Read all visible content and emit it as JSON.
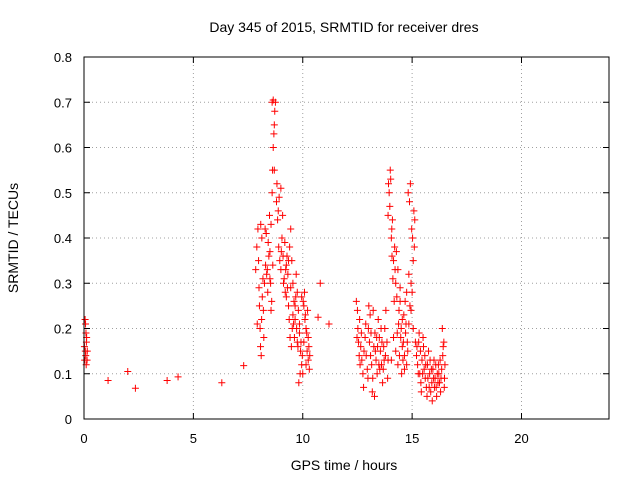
{
  "chart_data": {
    "type": "scatter",
    "title": "Day 345 of 2015, SRMTID for receiver dres",
    "xlabel": "GPS time / hours",
    "ylabel": "SRMTID / TECUs",
    "xlim": [
      0,
      24
    ],
    "ylim": [
      0,
      0.8
    ],
    "xticks": [
      0,
      5,
      10,
      15,
      20
    ],
    "xtick_labels": [
      "0",
      "5",
      "10",
      "15",
      "20"
    ],
    "yticks": [
      0,
      0.1,
      0.2,
      0.3,
      0.4,
      0.5,
      0.6,
      0.7,
      0.8
    ],
    "ytick_labels": [
      "0",
      "0.1",
      "0.2",
      "0.3",
      "0.4",
      "0.5",
      "0.6",
      "0.7",
      "0.8"
    ],
    "grid": true,
    "marker": "+",
    "color": "#ff0000",
    "series": [
      {
        "name": "SRMTID",
        "points": [
          [
            0.02,
            0.16
          ],
          [
            0.05,
            0.22
          ],
          [
            0.08,
            0.14
          ],
          [
            0.1,
            0.12
          ],
          [
            0.12,
            0.18
          ],
          [
            0.15,
            0.15
          ],
          [
            0.03,
            0.13
          ],
          [
            0.07,
            0.21
          ],
          [
            0.11,
            0.17
          ],
          [
            0.14,
            0.13
          ],
          [
            0.06,
            0.15
          ],
          [
            0.09,
            0.19
          ],
          [
            1.1,
            0.085
          ],
          [
            2.0,
            0.105
          ],
          [
            2.35,
            0.068
          ],
          [
            3.8,
            0.085
          ],
          [
            4.3,
            0.093
          ],
          [
            6.3,
            0.08
          ],
          [
            7.3,
            0.118
          ],
          [
            7.85,
            0.33
          ],
          [
            7.9,
            0.38
          ],
          [
            7.95,
            0.42
          ],
          [
            8.0,
            0.29
          ],
          [
            8.02,
            0.25
          ],
          [
            8.05,
            0.2
          ],
          [
            8.07,
            0.16
          ],
          [
            8.1,
            0.14
          ],
          [
            8.12,
            0.22
          ],
          [
            7.98,
            0.35
          ],
          [
            8.15,
            0.27
          ],
          [
            8.18,
            0.31
          ],
          [
            8.2,
            0.24
          ],
          [
            8.22,
            0.18
          ],
          [
            8.08,
            0.43
          ],
          [
            8.13,
            0.4
          ],
          [
            7.92,
            0.21
          ],
          [
            8.25,
            0.3
          ],
          [
            8.3,
            0.34
          ],
          [
            8.35,
            0.32
          ],
          [
            8.4,
            0.28
          ],
          [
            8.45,
            0.36
          ],
          [
            8.5,
            0.31
          ],
          [
            8.55,
            0.43
          ],
          [
            8.6,
            0.5
          ],
          [
            8.62,
            0.55
          ],
          [
            8.65,
            0.6
          ],
          [
            8.68,
            0.63
          ],
          [
            8.7,
            0.65
          ],
          [
            8.72,
            0.68
          ],
          [
            8.75,
            0.7
          ],
          [
            8.6,
            0.7
          ],
          [
            8.65,
            0.705
          ],
          [
            8.7,
            0.55
          ],
          [
            8.55,
            0.24
          ],
          [
            8.58,
            0.26
          ],
          [
            8.5,
            0.37
          ],
          [
            8.42,
            0.39
          ],
          [
            8.48,
            0.45
          ],
          [
            8.53,
            0.3
          ],
          [
            8.63,
            0.34
          ],
          [
            8.38,
            0.33
          ],
          [
            8.33,
            0.41
          ],
          [
            8.28,
            0.42
          ],
          [
            8.8,
            0.48
          ],
          [
            8.85,
            0.44
          ],
          [
            8.9,
            0.38
          ],
          [
            8.95,
            0.35
          ],
          [
            9.0,
            0.33
          ],
          [
            9.05,
            0.4
          ],
          [
            9.1,
            0.36
          ],
          [
            9.15,
            0.31
          ],
          [
            9.2,
            0.28
          ],
          [
            9.25,
            0.34
          ],
          [
            9.3,
            0.29
          ],
          [
            9.35,
            0.25
          ],
          [
            9.4,
            0.38
          ],
          [
            9.45,
            0.42
          ],
          [
            9.5,
            0.35
          ],
          [
            9.55,
            0.3
          ],
          [
            9.6,
            0.26
          ],
          [
            9.65,
            0.22
          ],
          [
            9.7,
            0.32
          ],
          [
            9.75,
            0.28
          ],
          [
            9.8,
            0.24
          ],
          [
            9.85,
            0.19
          ],
          [
            9.9,
            0.15
          ],
          [
            9.95,
            0.12
          ],
          [
            10.0,
            0.1
          ],
          [
            10.05,
            0.17
          ],
          [
            10.1,
            0.22
          ],
          [
            10.15,
            0.2
          ],
          [
            10.2,
            0.15
          ],
          [
            10.25,
            0.13
          ],
          [
            10.3,
            0.11
          ],
          [
            8.82,
            0.52
          ],
          [
            8.88,
            0.46
          ],
          [
            8.92,
            0.49
          ],
          [
            9.0,
            0.51
          ],
          [
            9.08,
            0.45
          ],
          [
            9.12,
            0.3
          ],
          [
            9.22,
            0.33
          ],
          [
            9.28,
            0.36
          ],
          [
            9.32,
            0.32
          ],
          [
            9.38,
            0.22
          ],
          [
            9.42,
            0.18
          ],
          [
            9.48,
            0.16
          ],
          [
            9.52,
            0.2
          ],
          [
            9.58,
            0.21
          ],
          [
            9.62,
            0.18
          ],
          [
            9.68,
            0.27
          ],
          [
            9.72,
            0.2
          ],
          [
            9.78,
            0.16
          ],
          [
            9.82,
            0.08
          ],
          [
            9.88,
            0.1
          ],
          [
            9.92,
            0.17
          ],
          [
            9.98,
            0.14
          ],
          [
            10.02,
            0.26
          ],
          [
            10.08,
            0.28
          ],
          [
            10.12,
            0.23
          ],
          [
            10.18,
            0.19
          ],
          [
            10.22,
            0.24
          ],
          [
            10.28,
            0.16
          ],
          [
            10.32,
            0.14
          ],
          [
            9.02,
            0.37
          ],
          [
            9.18,
            0.39
          ],
          [
            9.25,
            0.27
          ],
          [
            9.35,
            0.35
          ],
          [
            9.45,
            0.29
          ],
          [
            9.55,
            0.23
          ],
          [
            9.65,
            0.25
          ],
          [
            9.75,
            0.17
          ],
          [
            9.85,
            0.21
          ],
          [
            9.95,
            0.27
          ],
          [
            10.05,
            0.25
          ],
          [
            10.15,
            0.12
          ],
          [
            10.25,
            0.18
          ],
          [
            10.7,
            0.225
          ],
          [
            10.8,
            0.3
          ],
          [
            11.2,
            0.21
          ],
          [
            12.45,
            0.26
          ],
          [
            12.5,
            0.24
          ],
          [
            12.52,
            0.2
          ],
          [
            12.55,
            0.17
          ],
          [
            12.58,
            0.14
          ],
          [
            12.6,
            0.22
          ],
          [
            12.62,
            0.12
          ],
          [
            12.48,
            0.18
          ],
          [
            12.65,
            0.16
          ],
          [
            12.7,
            0.13
          ],
          [
            12.75,
            0.1
          ],
          [
            12.8,
            0.15
          ],
          [
            12.85,
            0.18
          ],
          [
            12.9,
            0.14
          ],
          [
            12.95,
            0.11
          ],
          [
            13.0,
            0.2
          ],
          [
            13.05,
            0.17
          ],
          [
            13.1,
            0.14
          ],
          [
            13.15,
            0.12
          ],
          [
            13.2,
            0.09
          ],
          [
            13.25,
            0.16
          ],
          [
            13.3,
            0.19
          ],
          [
            13.35,
            0.13
          ],
          [
            13.4,
            0.1
          ],
          [
            13.45,
            0.22
          ],
          [
            13.5,
            0.18
          ],
          [
            13.55,
            0.15
          ],
          [
            13.6,
            0.12
          ],
          [
            13.65,
            0.08
          ],
          [
            13.7,
            0.16
          ],
          [
            13.75,
            0.2
          ],
          [
            13.8,
            0.24
          ],
          [
            13.85,
            0.17
          ],
          [
            13.9,
            0.13
          ],
          [
            12.68,
            0.19
          ],
          [
            12.78,
            0.07
          ],
          [
            12.88,
            0.21
          ],
          [
            12.98,
            0.09
          ],
          [
            13.08,
            0.23
          ],
          [
            13.18,
            0.06
          ],
          [
            13.28,
            0.05
          ],
          [
            13.38,
            0.18
          ],
          [
            13.48,
            0.12
          ],
          [
            13.58,
            0.2
          ],
          [
            13.68,
            0.11
          ],
          [
            13.78,
            0.14
          ],
          [
            13.88,
            0.09
          ],
          [
            13.02,
            0.25
          ],
          [
            13.22,
            0.24
          ],
          [
            13.42,
            0.16
          ],
          [
            13.62,
            0.17
          ],
          [
            13.12,
            0.19
          ],
          [
            13.32,
            0.15
          ],
          [
            13.52,
            0.11
          ],
          [
            13.72,
            0.13
          ],
          [
            13.9,
            0.45
          ],
          [
            13.95,
            0.5
          ],
          [
            14.0,
            0.55
          ],
          [
            14.02,
            0.53
          ],
          [
            13.98,
            0.47
          ],
          [
            14.05,
            0.4
          ],
          [
            14.1,
            0.44
          ],
          [
            14.15,
            0.35
          ],
          [
            14.2,
            0.38
          ],
          [
            14.25,
            0.3
          ],
          [
            14.3,
            0.27
          ],
          [
            14.35,
            0.33
          ],
          [
            14.4,
            0.24
          ],
          [
            14.45,
            0.29
          ],
          [
            14.5,
            0.2
          ],
          [
            14.55,
            0.22
          ],
          [
            14.6,
            0.17
          ],
          [
            14.65,
            0.14
          ],
          [
            14.7,
            0.19
          ],
          [
            14.75,
            0.12
          ],
          [
            14.8,
            0.15
          ],
          [
            14.85,
            0.21
          ],
          [
            14.9,
            0.25
          ],
          [
            14.95,
            0.3
          ],
          [
            15.0,
            0.28
          ],
          [
            15.05,
            0.35
          ],
          [
            15.1,
            0.38
          ],
          [
            14.82,
            0.5
          ],
          [
            14.88,
            0.48
          ],
          [
            14.92,
            0.52
          ],
          [
            14.98,
            0.42
          ],
          [
            15.02,
            0.4
          ],
          [
            15.08,
            0.46
          ],
          [
            15.12,
            0.44
          ],
          [
            14.08,
            0.36
          ],
          [
            14.12,
            0.31
          ],
          [
            14.18,
            0.26
          ],
          [
            14.22,
            0.33
          ],
          [
            14.28,
            0.37
          ],
          [
            14.32,
            0.19
          ],
          [
            14.38,
            0.21
          ],
          [
            14.42,
            0.14
          ],
          [
            14.48,
            0.18
          ],
          [
            14.52,
            0.1
          ],
          [
            14.58,
            0.13
          ],
          [
            14.62,
            0.23
          ],
          [
            14.68,
            0.26
          ],
          [
            14.72,
            0.21
          ],
          [
            14.78,
            0.17
          ],
          [
            14.05,
            0.13
          ],
          [
            14.15,
            0.18
          ],
          [
            14.25,
            0.15
          ],
          [
            14.35,
            0.12
          ],
          [
            14.45,
            0.26
          ],
          [
            14.55,
            0.16
          ],
          [
            14.65,
            0.11
          ],
          [
            14.75,
            0.28
          ],
          [
            14.85,
            0.32
          ],
          [
            14.95,
            0.24
          ],
          [
            15.05,
            0.2
          ],
          [
            15.15,
            0.17
          ],
          [
            13.92,
            0.52
          ],
          [
            14.07,
            0.42
          ],
          [
            15.2,
            0.14
          ],
          [
            15.25,
            0.12
          ],
          [
            15.3,
            0.17
          ],
          [
            15.35,
            0.1
          ],
          [
            15.4,
            0.08
          ],
          [
            15.45,
            0.13
          ],
          [
            15.5,
            0.18
          ],
          [
            15.55,
            0.11
          ],
          [
            15.6,
            0.09
          ],
          [
            15.65,
            0.07
          ],
          [
            15.7,
            0.12
          ],
          [
            15.75,
            0.15
          ],
          [
            15.8,
            0.1
          ],
          [
            15.85,
            0.06
          ],
          [
            15.9,
            0.08
          ],
          [
            15.95,
            0.11
          ],
          [
            16.0,
            0.13
          ],
          [
            16.05,
            0.09
          ],
          [
            16.1,
            0.07
          ],
          [
            16.15,
            0.1
          ],
          [
            16.2,
            0.12
          ],
          [
            16.25,
            0.08
          ],
          [
            16.3,
            0.06
          ],
          [
            16.35,
            0.11
          ],
          [
            16.4,
            0.14
          ],
          [
            16.45,
            0.17
          ],
          [
            16.5,
            0.12
          ],
          [
            16.38,
            0.2
          ],
          [
            16.42,
            0.16
          ],
          [
            16.48,
            0.09
          ],
          [
            15.22,
            0.16
          ],
          [
            15.28,
            0.1
          ],
          [
            15.32,
            0.19
          ],
          [
            15.38,
            0.15
          ],
          [
            15.42,
            0.06
          ],
          [
            15.48,
            0.1
          ],
          [
            15.52,
            0.16
          ],
          [
            15.58,
            0.14
          ],
          [
            15.62,
            0.12
          ],
          [
            15.68,
            0.05
          ],
          [
            15.72,
            0.09
          ],
          [
            15.78,
            0.07
          ],
          [
            15.82,
            0.13
          ],
          [
            15.88,
            0.11
          ],
          [
            15.92,
            0.04
          ],
          [
            15.98,
            0.09
          ],
          [
            16.02,
            0.07
          ],
          [
            16.08,
            0.12
          ],
          [
            16.12,
            0.05
          ],
          [
            16.18,
            0.08
          ],
          [
            16.22,
            0.1
          ],
          [
            16.28,
            0.13
          ],
          [
            16.32,
            0.09
          ],
          [
            16.47,
            0.07
          ]
        ]
      }
    ]
  }
}
